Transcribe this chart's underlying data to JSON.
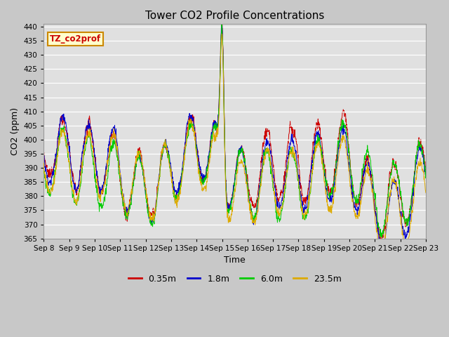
{
  "title": "Tower CO2 Profile Concentrations",
  "xlabel": "Time",
  "ylabel": "CO2 (ppm)",
  "ylim": [
    365,
    441
  ],
  "yticks": [
    365,
    370,
    375,
    380,
    385,
    390,
    395,
    400,
    405,
    410,
    415,
    420,
    425,
    430,
    435,
    440
  ],
  "series_labels": [
    "0.35m",
    "1.8m",
    "6.0m",
    "23.5m"
  ],
  "series_colors": [
    "#cc0000",
    "#0000cc",
    "#00cc00",
    "#ddaa00"
  ],
  "annotation_text": "TZ_co2prof",
  "annotation_bg": "#ffffcc",
  "annotation_border": "#cc8800",
  "annotation_text_color": "#cc0000",
  "fig_bg_color": "#c8c8c8",
  "plot_bg_color": "#e0e0e0",
  "n_days": 15,
  "start_day": 8,
  "seed": 12345
}
